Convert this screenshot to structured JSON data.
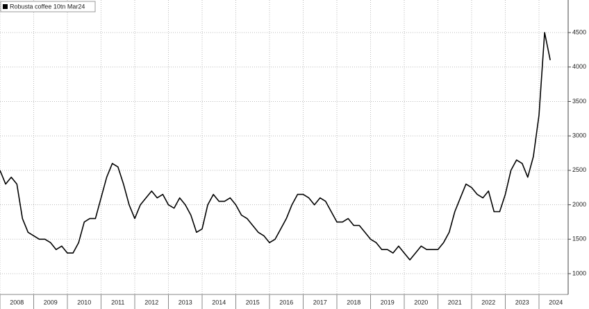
{
  "chart_data": {
    "type": "line",
    "categories": [
      "2008",
      null,
      null,
      null,
      null,
      null,
      "2009",
      null,
      null,
      null,
      null,
      null,
      "2010",
      null,
      null,
      null,
      null,
      null,
      "2011",
      null,
      null,
      null,
      null,
      null,
      "2012",
      null,
      null,
      null,
      null,
      null,
      "2013",
      null,
      null,
      null,
      null,
      null,
      "2014",
      null,
      null,
      null,
      null,
      null,
      "2015",
      null,
      null,
      null,
      null,
      null,
      "2016",
      null,
      null,
      null,
      null,
      null,
      "2017",
      null,
      null,
      null,
      null,
      null,
      "2018",
      null,
      null,
      null,
      null,
      null,
      "2019",
      null,
      null,
      null,
      null,
      null,
      "2020",
      null,
      null,
      null,
      null,
      null,
      "2021",
      null,
      null,
      null,
      null,
      null,
      "2022",
      null,
      null,
      null,
      null,
      null,
      "2023",
      null,
      null,
      null,
      null,
      null,
      "2024",
      null,
      null
    ],
    "series": [
      {
        "name": "Robusta coffee 10tn Mar24",
        "color": "#000000",
        "values": [
          2500,
          2300,
          2400,
          2300,
          1800,
          1600,
          1550,
          1500,
          1500,
          1450,
          1350,
          1400,
          1300,
          1300,
          1450,
          1750,
          1800,
          1800,
          2100,
          2400,
          2600,
          2550,
          2300,
          2000,
          1800,
          2000,
          2100,
          2200,
          2100,
          2150,
          2000,
          1950,
          2100,
          2000,
          1850,
          1600,
          1650,
          2000,
          2150,
          2050,
          2050,
          2100,
          2000,
          1850,
          1800,
          1700,
          1600,
          1550,
          1450,
          1500,
          1650,
          1800,
          2000,
          2150,
          2150,
          2100,
          2000,
          2100,
          2050,
          1900,
          1750,
          1750,
          1800,
          1700,
          1700,
          1600,
          1500,
          1450,
          1350,
          1350,
          1300,
          1400,
          1300,
          1200,
          1300,
          1400,
          1350,
          1350,
          1350,
          1450,
          1600,
          1900,
          2100,
          2300,
          2250,
          2150,
          2100,
          2200,
          1900,
          1900,
          2150,
          2500,
          2650,
          2600,
          2400,
          2700,
          3300,
          4500,
          4100
        ]
      }
    ],
    "ylim": [
      698,
      4973
    ],
    "yticks": [
      1000,
      1500,
      2000,
      2500,
      3000,
      3500,
      4000,
      4500
    ],
    "grid": true,
    "legend": "upper left"
  }
}
